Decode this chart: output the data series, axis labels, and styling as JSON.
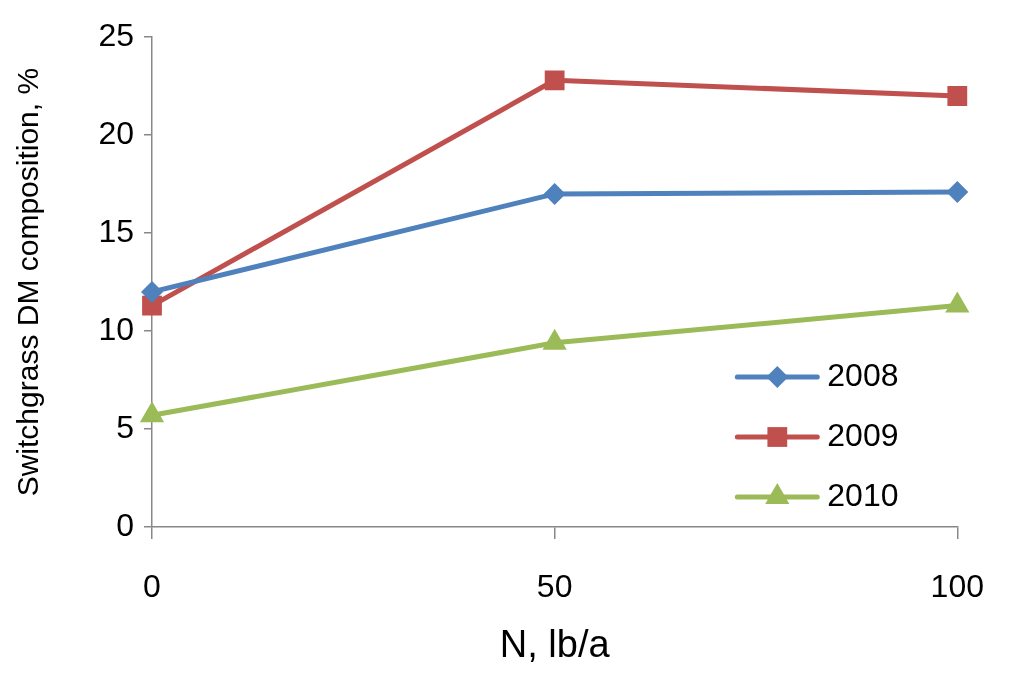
{
  "chart_data": {
    "type": "line",
    "xlabel": "N, lb/a",
    "ylabel": "Switchgrass DM composition, %",
    "categories": [
      "0",
      "50",
      "100"
    ],
    "series": [
      {
        "name": "2008",
        "color": "#4f81bd",
        "marker": "diamond",
        "values": [
          12,
          17,
          17.1
        ]
      },
      {
        "name": "2009",
        "color": "#c0504d",
        "marker": "square",
        "values": [
          11.3,
          22.8,
          22
        ]
      },
      {
        "name": "2010",
        "color": "#9bbb59",
        "marker": "triangle",
        "values": [
          5.7,
          9.4,
          11.3
        ]
      }
    ],
    "ylim": [
      0,
      25
    ],
    "yticks": [
      0,
      5,
      10,
      15,
      20,
      25
    ],
    "grid": false,
    "legend": "bottom right",
    "line_style": "solid"
  }
}
